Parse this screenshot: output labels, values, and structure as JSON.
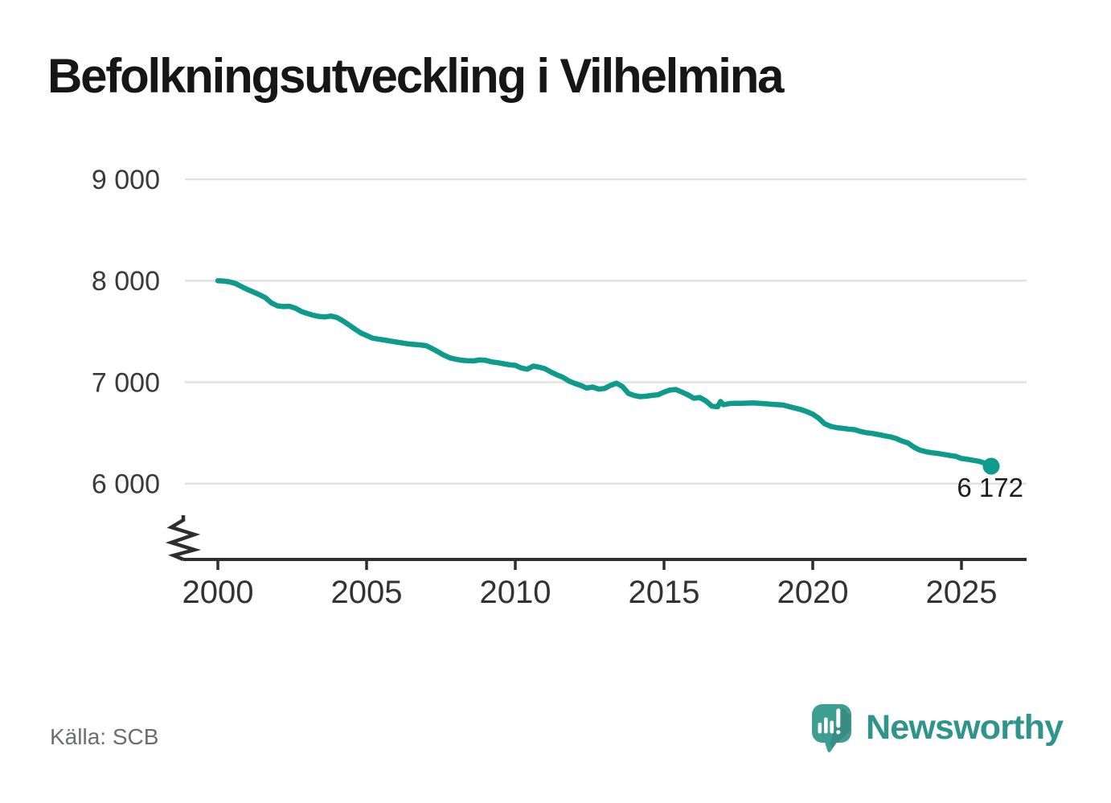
{
  "title": "Befolkningsutveckling i Vilhelmina",
  "source": "Källa: SCB",
  "brand": {
    "name": "Newsworthy",
    "icon": "newsworthy-speech-bubble-bar-chart-icon"
  },
  "colors": {
    "line": "#0f9b8c",
    "grid": "#e2e2e2",
    "axis": "#2e2e2e",
    "axis_text": "#3a3a3a",
    "title_text": "#161616",
    "source_text": "#6c6e70",
    "brand_text": "#2f948b",
    "brand_icon": "#3e9e92",
    "end_label_text": "#1c1c1c",
    "background": "#ffffff"
  },
  "chart_data": {
    "type": "line",
    "title": "Befolkningsutveckling i Vilhelmina",
    "xlabel": "",
    "ylabel": "",
    "x_ticks": [
      2000,
      2005,
      2010,
      2015,
      2020,
      2025
    ],
    "x_tick_labels": [
      "2000",
      "2005",
      "2010",
      "2015",
      "2020",
      "2025"
    ],
    "y_ticks": [
      6000,
      7000,
      8000,
      9000
    ],
    "y_tick_labels": [
      "6 000",
      "7 000",
      "8 000",
      "9 000"
    ],
    "x_range": [
      1998.8,
      2027.2
    ],
    "y_range": [
      6000,
      9000
    ],
    "y_axis_break": true,
    "grid": "horizontal",
    "legend": "none",
    "series": [
      {
        "name": "Befolkning",
        "color": "#0f9b8c",
        "points": [
          [
            2000.0,
            8000
          ],
          [
            2000.2,
            7997
          ],
          [
            2000.4,
            7988
          ],
          [
            2000.6,
            7972
          ],
          [
            2000.8,
            7942
          ],
          [
            2001.0,
            7912
          ],
          [
            2001.2,
            7888
          ],
          [
            2001.4,
            7862
          ],
          [
            2001.6,
            7832
          ],
          [
            2001.8,
            7782
          ],
          [
            2002.0,
            7752
          ],
          [
            2002.2,
            7745
          ],
          [
            2002.4,
            7748
          ],
          [
            2002.6,
            7730
          ],
          [
            2002.8,
            7698
          ],
          [
            2003.0,
            7678
          ],
          [
            2003.2,
            7660
          ],
          [
            2003.4,
            7648
          ],
          [
            2003.6,
            7643
          ],
          [
            2003.8,
            7652
          ],
          [
            2004.0,
            7638
          ],
          [
            2004.2,
            7605
          ],
          [
            2004.4,
            7565
          ],
          [
            2004.6,
            7525
          ],
          [
            2004.8,
            7486
          ],
          [
            2005.0,
            7460
          ],
          [
            2005.2,
            7434
          ],
          [
            2005.4,
            7424
          ],
          [
            2005.6,
            7416
          ],
          [
            2005.8,
            7405
          ],
          [
            2006.0,
            7396
          ],
          [
            2006.2,
            7386
          ],
          [
            2006.4,
            7378
          ],
          [
            2006.6,
            7372
          ],
          [
            2006.8,
            7367
          ],
          [
            2007.0,
            7360
          ],
          [
            2007.2,
            7332
          ],
          [
            2007.4,
            7300
          ],
          [
            2007.6,
            7266
          ],
          [
            2007.8,
            7240
          ],
          [
            2008.0,
            7226
          ],
          [
            2008.2,
            7216
          ],
          [
            2008.4,
            7212
          ],
          [
            2008.6,
            7210
          ],
          [
            2008.8,
            7220
          ],
          [
            2009.0,
            7215
          ],
          [
            2009.2,
            7200
          ],
          [
            2009.4,
            7192
          ],
          [
            2009.6,
            7182
          ],
          [
            2009.8,
            7172
          ],
          [
            2010.0,
            7166
          ],
          [
            2010.2,
            7140
          ],
          [
            2010.4,
            7128
          ],
          [
            2010.6,
            7158
          ],
          [
            2010.8,
            7148
          ],
          [
            2011.0,
            7132
          ],
          [
            2011.2,
            7100
          ],
          [
            2011.4,
            7072
          ],
          [
            2011.6,
            7048
          ],
          [
            2011.8,
            7012
          ],
          [
            2012.0,
            6988
          ],
          [
            2012.2,
            6968
          ],
          [
            2012.4,
            6942
          ],
          [
            2012.6,
            6952
          ],
          [
            2012.8,
            6932
          ],
          [
            2013.0,
            6938
          ],
          [
            2013.2,
            6968
          ],
          [
            2013.4,
            6990
          ],
          [
            2013.6,
            6958
          ],
          [
            2013.8,
            6890
          ],
          [
            2014.0,
            6868
          ],
          [
            2014.2,
            6857
          ],
          [
            2014.4,
            6862
          ],
          [
            2014.6,
            6870
          ],
          [
            2014.8,
            6876
          ],
          [
            2015.0,
            6902
          ],
          [
            2015.2,
            6923
          ],
          [
            2015.4,
            6928
          ],
          [
            2015.6,
            6902
          ],
          [
            2015.8,
            6876
          ],
          [
            2016.0,
            6841
          ],
          [
            2016.2,
            6849
          ],
          [
            2016.4,
            6817
          ],
          [
            2016.6,
            6765
          ],
          [
            2016.8,
            6757
          ],
          [
            2016.9,
            6810
          ],
          [
            2017.0,
            6778
          ],
          [
            2017.2,
            6790
          ],
          [
            2017.4,
            6792
          ],
          [
            2017.6,
            6792
          ],
          [
            2017.8,
            6794
          ],
          [
            2018.0,
            6796
          ],
          [
            2018.2,
            6792
          ],
          [
            2018.4,
            6788
          ],
          [
            2018.6,
            6783
          ],
          [
            2018.8,
            6779
          ],
          [
            2019.0,
            6775
          ],
          [
            2019.2,
            6760
          ],
          [
            2019.4,
            6745
          ],
          [
            2019.6,
            6730
          ],
          [
            2019.8,
            6710
          ],
          [
            2020.0,
            6685
          ],
          [
            2020.2,
            6645
          ],
          [
            2020.4,
            6590
          ],
          [
            2020.6,
            6565
          ],
          [
            2020.8,
            6552
          ],
          [
            2021.0,
            6545
          ],
          [
            2021.2,
            6538
          ],
          [
            2021.4,
            6532
          ],
          [
            2021.6,
            6515
          ],
          [
            2021.8,
            6502
          ],
          [
            2022.0,
            6495
          ],
          [
            2022.2,
            6484
          ],
          [
            2022.4,
            6472
          ],
          [
            2022.6,
            6462
          ],
          [
            2022.8,
            6445
          ],
          [
            2023.0,
            6420
          ],
          [
            2023.2,
            6402
          ],
          [
            2023.4,
            6360
          ],
          [
            2023.6,
            6330
          ],
          [
            2023.8,
            6315
          ],
          [
            2024.0,
            6305
          ],
          [
            2024.2,
            6298
          ],
          [
            2024.4,
            6288
          ],
          [
            2024.6,
            6278
          ],
          [
            2024.8,
            6270
          ],
          [
            2025.0,
            6248
          ],
          [
            2025.2,
            6240
          ],
          [
            2025.4,
            6230
          ],
          [
            2025.6,
            6220
          ],
          [
            2025.8,
            6200
          ],
          [
            2026.0,
            6172
          ]
        ]
      }
    ],
    "end_point": {
      "x": 2026.0,
      "y": 6172,
      "label": "6 172"
    }
  }
}
